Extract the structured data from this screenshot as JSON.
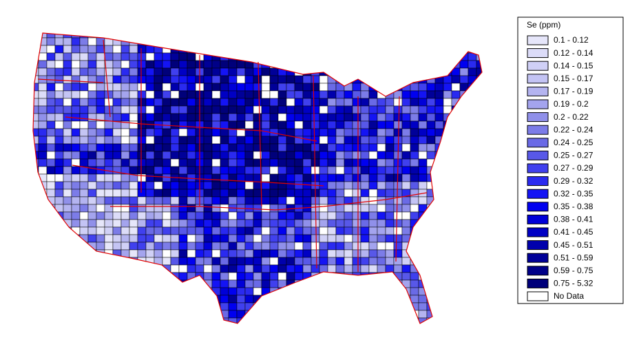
{
  "legend": {
    "title": "Se (ppm)",
    "items": [
      {
        "label": "0.1 - 0.12",
        "color": "#e6e6fa"
      },
      {
        "label": "0.12 - 0.14",
        "color": "#dcdcf8"
      },
      {
        "label": "0.14 - 0.15",
        "color": "#d0d0f6"
      },
      {
        "label": "0.15 - 0.17",
        "color": "#c4c4f4"
      },
      {
        "label": "0.17 - 0.19",
        "color": "#b4b4f0"
      },
      {
        "label": "0.19 - 0.2",
        "color": "#a4a4ee"
      },
      {
        "label": "0.2 - 0.22",
        "color": "#9090ea"
      },
      {
        "label": "0.22 - 0.24",
        "color": "#7c7ce8"
      },
      {
        "label": "0.24 - 0.25",
        "color": "#6a6ae6"
      },
      {
        "label": "0.25 - 0.27",
        "color": "#5858e8"
      },
      {
        "label": "0.27 - 0.29",
        "color": "#4040ee"
      },
      {
        "label": "0.29 - 0.32",
        "color": "#2a2af0"
      },
      {
        "label": "0.32 - 0.35",
        "color": "#1414f4"
      },
      {
        "label": "0.35 - 0.38",
        "color": "#0000f0"
      },
      {
        "label": "0.38 - 0.41",
        "color": "#0000d8"
      },
      {
        "label": "0.41 - 0.45",
        "color": "#0000c4"
      },
      {
        "label": "0.45 - 0.51",
        "color": "#0000ac"
      },
      {
        "label": "0.51 - 0.59",
        "color": "#000098"
      },
      {
        "label": "0.59 - 0.75",
        "color": "#000088"
      },
      {
        "label": "0.75 - 5.32",
        "color": "#00007a"
      },
      {
        "label": "No Data",
        "color": "#ffffff"
      }
    ]
  }
}
